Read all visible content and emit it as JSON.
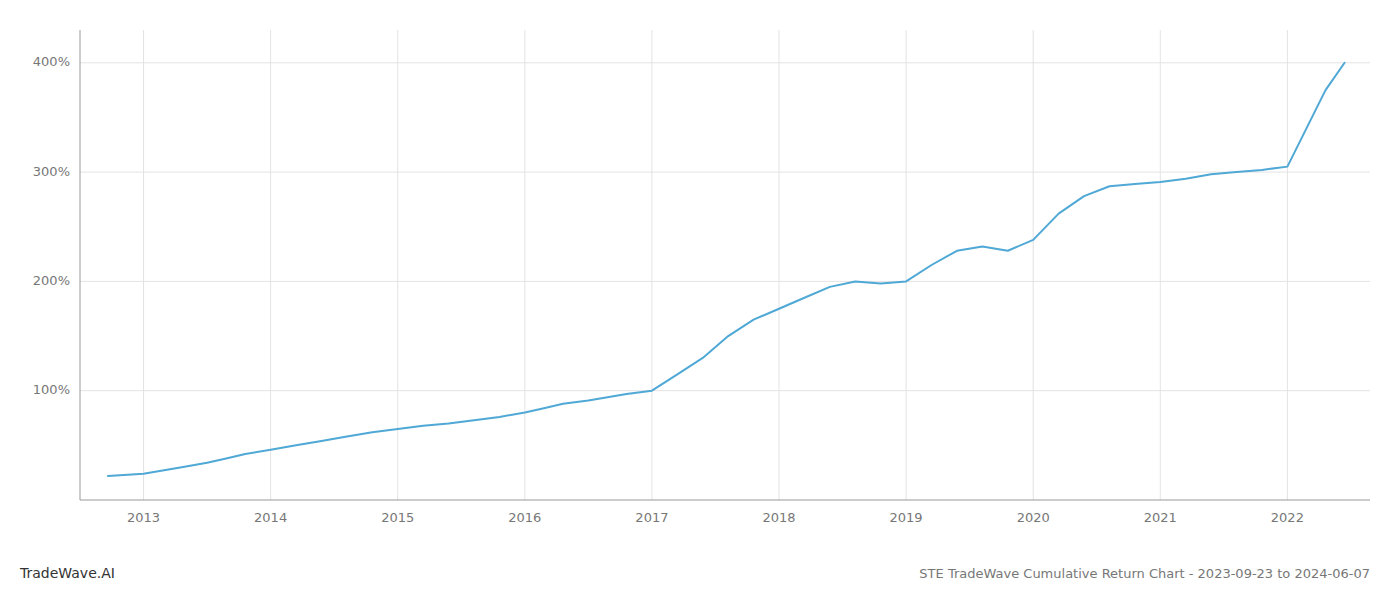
{
  "chart_data": {
    "type": "line",
    "title": "STE TradeWave Cumulative Return Chart - 2023-09-23 to 2024-06-07",
    "annotations": [
      "TradeWave.AI"
    ],
    "color": "#4fa8d5",
    "grid": true,
    "x": [
      2012.72,
      2013.0,
      2013.15,
      2013.3,
      2013.5,
      2013.65,
      2013.8,
      2014.0,
      2014.2,
      2014.4,
      2014.6,
      2014.8,
      2015.0,
      2015.2,
      2015.4,
      2015.6,
      2015.8,
      2016.0,
      2016.15,
      2016.3,
      2016.5,
      2016.65,
      2016.8,
      2017.0,
      2017.2,
      2017.4,
      2017.6,
      2017.8,
      2018.0,
      2018.2,
      2018.4,
      2018.6,
      2018.8,
      2019.0,
      2019.2,
      2019.4,
      2019.6,
      2019.8,
      2020.0,
      2020.2,
      2020.4,
      2020.6,
      2020.8,
      2021.0,
      2021.2,
      2021.4,
      2021.6,
      2021.8,
      2022.0,
      2022.15,
      2022.3,
      2022.45
    ],
    "values": [
      22,
      24,
      27,
      30,
      34,
      38,
      42,
      46,
      50,
      54,
      58,
      62,
      65,
      68,
      70,
      73,
      76,
      80,
      84,
      88,
      91,
      94,
      97,
      100,
      115,
      130,
      150,
      165,
      175,
      185,
      195,
      200,
      198,
      200,
      215,
      228,
      232,
      228,
      238,
      262,
      278,
      287,
      289,
      291,
      294,
      298,
      300,
      302,
      305,
      340,
      375,
      400
    ],
    "xlim": [
      2012.5,
      2022.65
    ],
    "xticks": [
      2013,
      2014,
      2015,
      2016,
      2017,
      2018,
      2019,
      2020,
      2021,
      2022
    ],
    "ylim": [
      0,
      430
    ],
    "yticks": [
      {
        "value": 100,
        "label": "100%"
      },
      {
        "value": 200,
        "label": "200%"
      },
      {
        "value": 300,
        "label": "300%"
      },
      {
        "value": 400,
        "label": "400%"
      }
    ]
  }
}
